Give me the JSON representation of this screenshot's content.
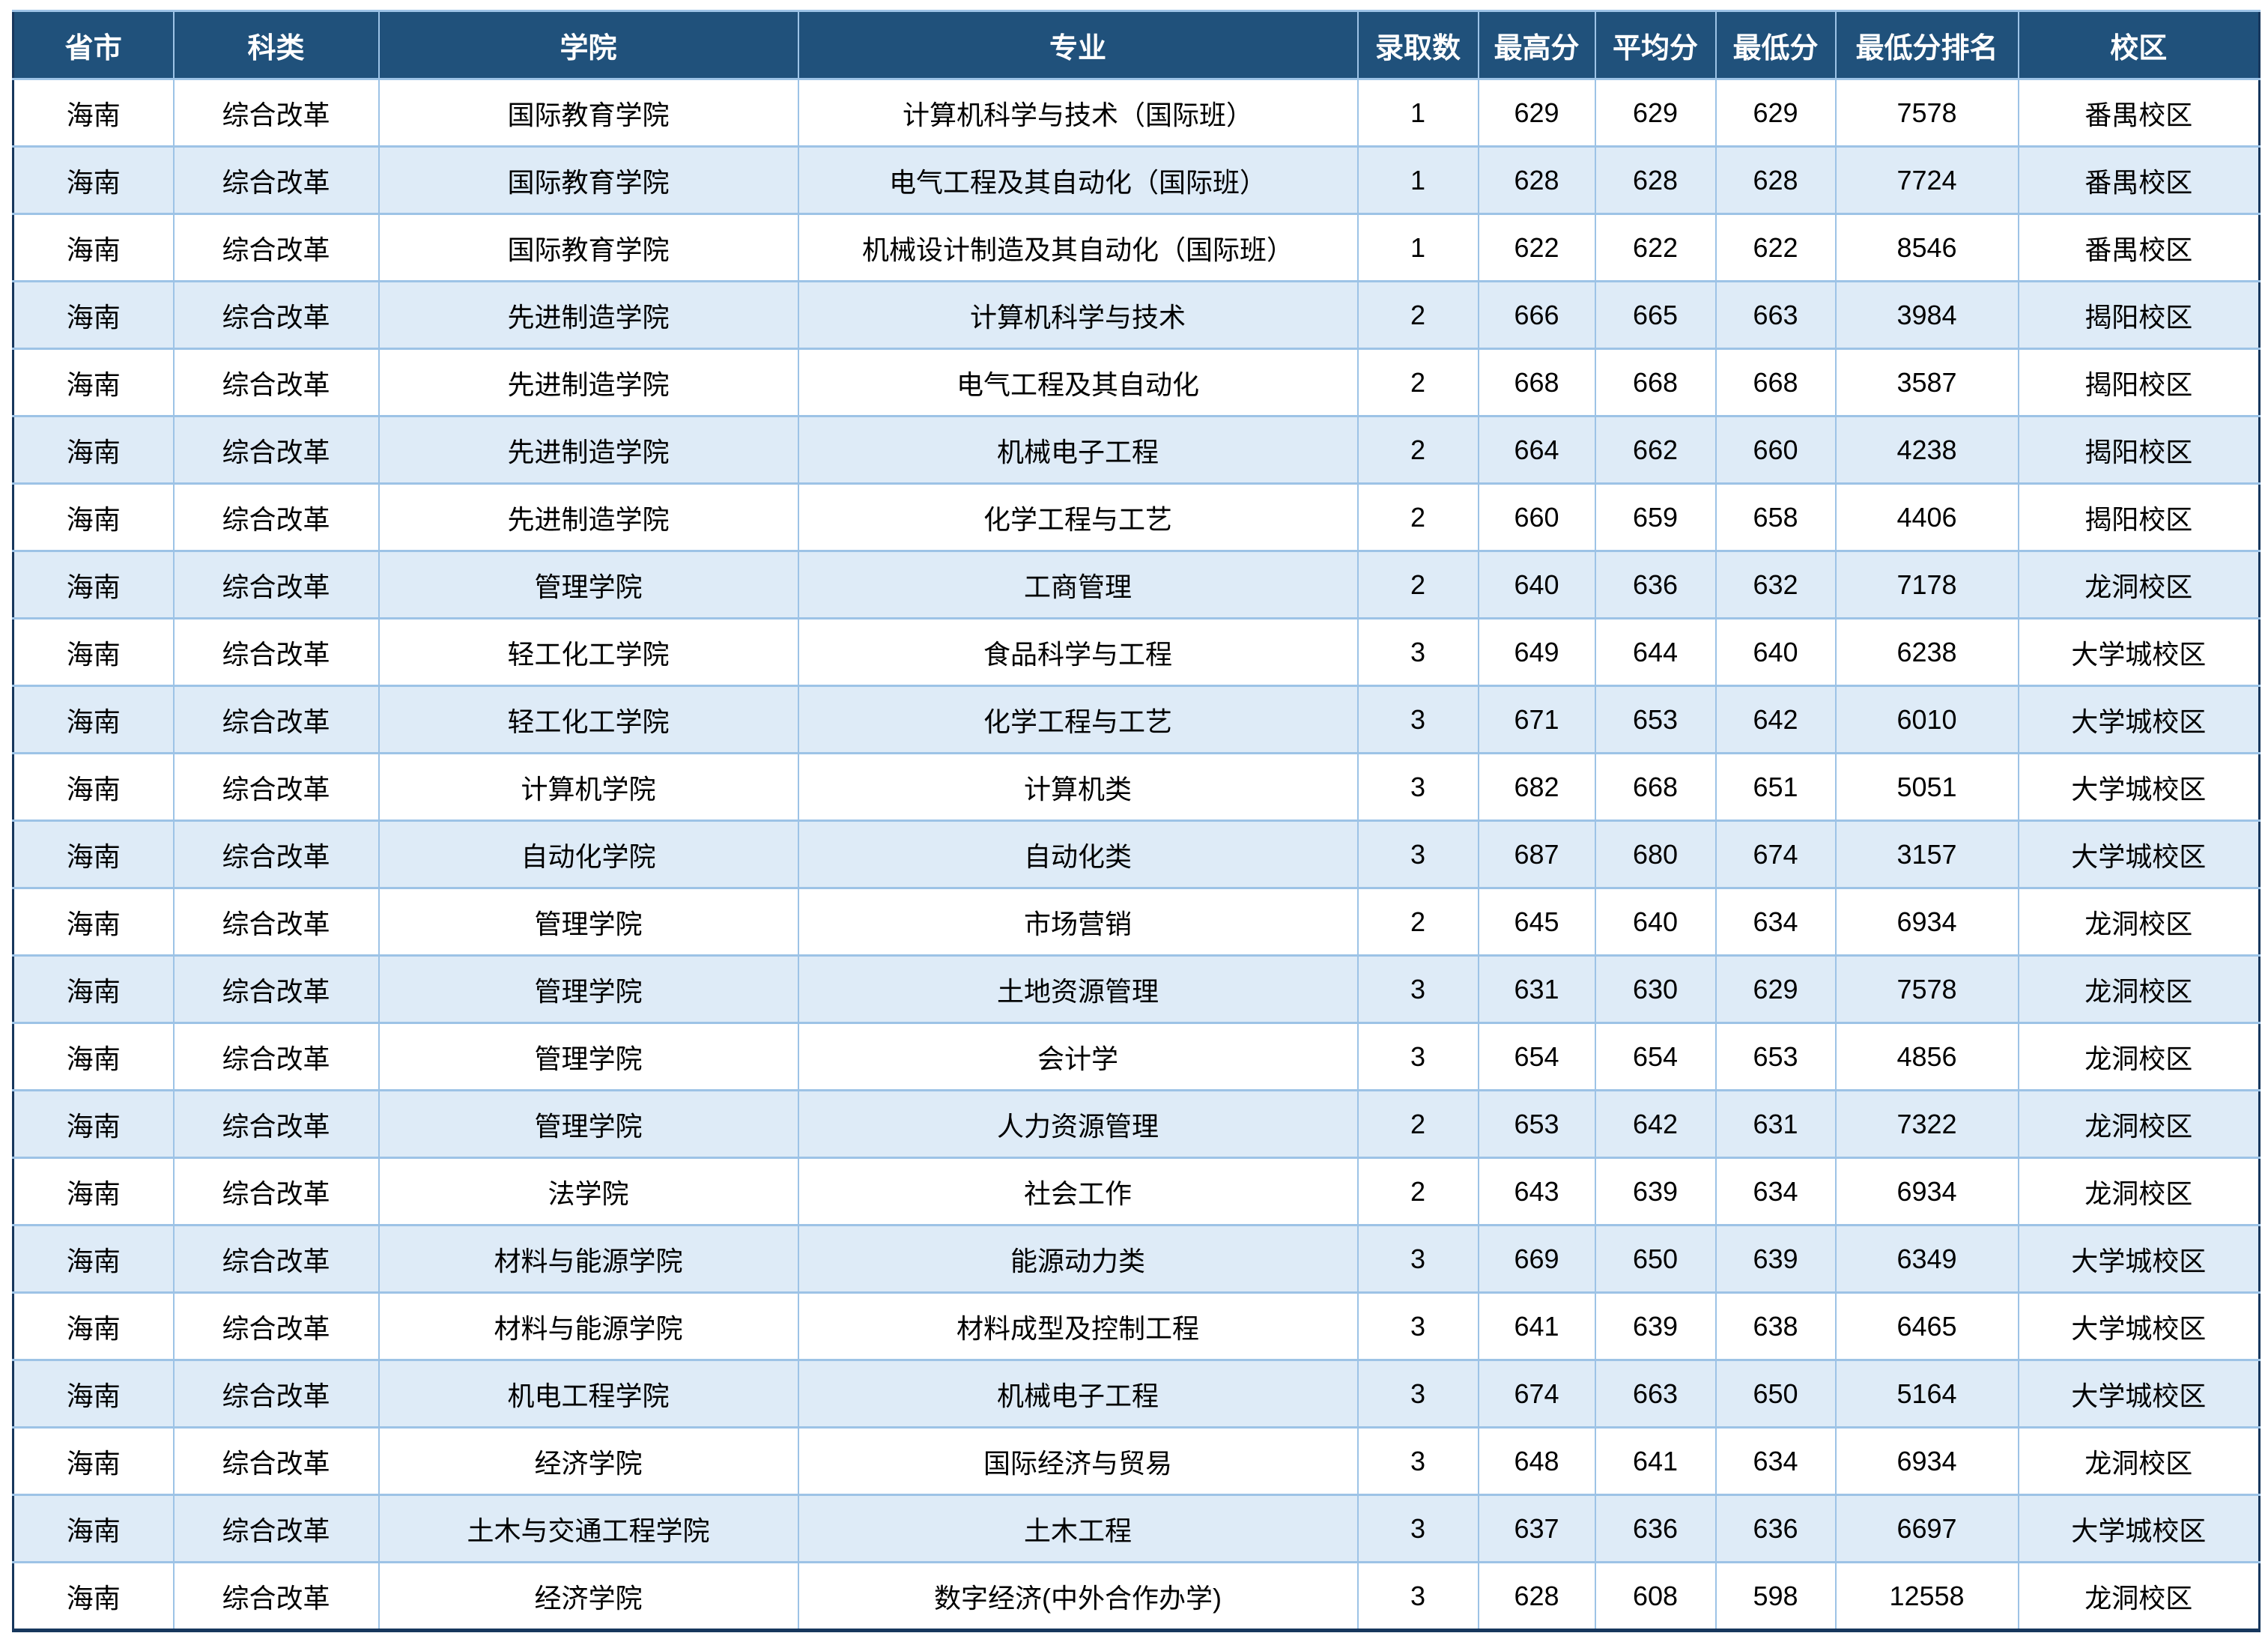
{
  "colors": {
    "header_bg": "#20517B",
    "header_text": "#FFFFFF",
    "row_bg": "#FFFFFF",
    "row_alt_bg": "#DEEBF7",
    "grid_border": "#9DC3E6",
    "outer_border": "#17375D",
    "body_text": "#000000"
  },
  "table": {
    "columns": [
      {
        "key": "province",
        "label": "省市"
      },
      {
        "key": "category",
        "label": "科类"
      },
      {
        "key": "college",
        "label": "学院"
      },
      {
        "key": "major",
        "label": "专业"
      },
      {
        "key": "admit-count",
        "label": "录取数"
      },
      {
        "key": "max-score",
        "label": "最高分"
      },
      {
        "key": "avg-score",
        "label": "平均分"
      },
      {
        "key": "min-score",
        "label": "最低分"
      },
      {
        "key": "min-score-rank",
        "label": "最低分排名"
      },
      {
        "key": "campus",
        "label": "校区"
      }
    ],
    "rows": [
      [
        "海南",
        "综合改革",
        "国际教育学院",
        "计算机科学与技术（国际班）",
        "1",
        "629",
        "629",
        "629",
        "7578",
        "番禺校区"
      ],
      [
        "海南",
        "综合改革",
        "国际教育学院",
        "电气工程及其自动化（国际班）",
        "1",
        "628",
        "628",
        "628",
        "7724",
        "番禺校区"
      ],
      [
        "海南",
        "综合改革",
        "国际教育学院",
        "机械设计制造及其自动化（国际班）",
        "1",
        "622",
        "622",
        "622",
        "8546",
        "番禺校区"
      ],
      [
        "海南",
        "综合改革",
        "先进制造学院",
        "计算机科学与技术",
        "2",
        "666",
        "665",
        "663",
        "3984",
        "揭阳校区"
      ],
      [
        "海南",
        "综合改革",
        "先进制造学院",
        "电气工程及其自动化",
        "2",
        "668",
        "668",
        "668",
        "3587",
        "揭阳校区"
      ],
      [
        "海南",
        "综合改革",
        "先进制造学院",
        "机械电子工程",
        "2",
        "664",
        "662",
        "660",
        "4238",
        "揭阳校区"
      ],
      [
        "海南",
        "综合改革",
        "先进制造学院",
        "化学工程与工艺",
        "2",
        "660",
        "659",
        "658",
        "4406",
        "揭阳校区"
      ],
      [
        "海南",
        "综合改革",
        "管理学院",
        "工商管理",
        "2",
        "640",
        "636",
        "632",
        "7178",
        "龙洞校区"
      ],
      [
        "海南",
        "综合改革",
        "轻工化工学院",
        "食品科学与工程",
        "3",
        "649",
        "644",
        "640",
        "6238",
        "大学城校区"
      ],
      [
        "海南",
        "综合改革",
        "轻工化工学院",
        "化学工程与工艺",
        "3",
        "671",
        "653",
        "642",
        "6010",
        "大学城校区"
      ],
      [
        "海南",
        "综合改革",
        "计算机学院",
        "计算机类",
        "3",
        "682",
        "668",
        "651",
        "5051",
        "大学城校区"
      ],
      [
        "海南",
        "综合改革",
        "自动化学院",
        "自动化类",
        "3",
        "687",
        "680",
        "674",
        "3157",
        "大学城校区"
      ],
      [
        "海南",
        "综合改革",
        "管理学院",
        "市场营销",
        "2",
        "645",
        "640",
        "634",
        "6934",
        "龙洞校区"
      ],
      [
        "海南",
        "综合改革",
        "管理学院",
        "土地资源管理",
        "3",
        "631",
        "630",
        "629",
        "7578",
        "龙洞校区"
      ],
      [
        "海南",
        "综合改革",
        "管理学院",
        "会计学",
        "3",
        "654",
        "654",
        "653",
        "4856",
        "龙洞校区"
      ],
      [
        "海南",
        "综合改革",
        "管理学院",
        "人力资源管理",
        "2",
        "653",
        "642",
        "631",
        "7322",
        "龙洞校区"
      ],
      [
        "海南",
        "综合改革",
        "法学院",
        "社会工作",
        "2",
        "643",
        "639",
        "634",
        "6934",
        "龙洞校区"
      ],
      [
        "海南",
        "综合改革",
        "材料与能源学院",
        "能源动力类",
        "3",
        "669",
        "650",
        "639",
        "6349",
        "大学城校区"
      ],
      [
        "海南",
        "综合改革",
        "材料与能源学院",
        "材料成型及控制工程",
        "3",
        "641",
        "639",
        "638",
        "6465",
        "大学城校区"
      ],
      [
        "海南",
        "综合改革",
        "机电工程学院",
        "机械电子工程",
        "3",
        "674",
        "663",
        "650",
        "5164",
        "大学城校区"
      ],
      [
        "海南",
        "综合改革",
        "经济学院",
        "国际经济与贸易",
        "3",
        "648",
        "641",
        "634",
        "6934",
        "龙洞校区"
      ],
      [
        "海南",
        "综合改革",
        "土木与交通工程学院",
        "土木工程",
        "3",
        "637",
        "636",
        "636",
        "6697",
        "大学城校区"
      ],
      [
        "海南",
        "综合改革",
        "经济学院",
        "数字经济(中外合作办学)",
        "3",
        "628",
        "608",
        "598",
        "12558",
        "龙洞校区"
      ]
    ]
  }
}
